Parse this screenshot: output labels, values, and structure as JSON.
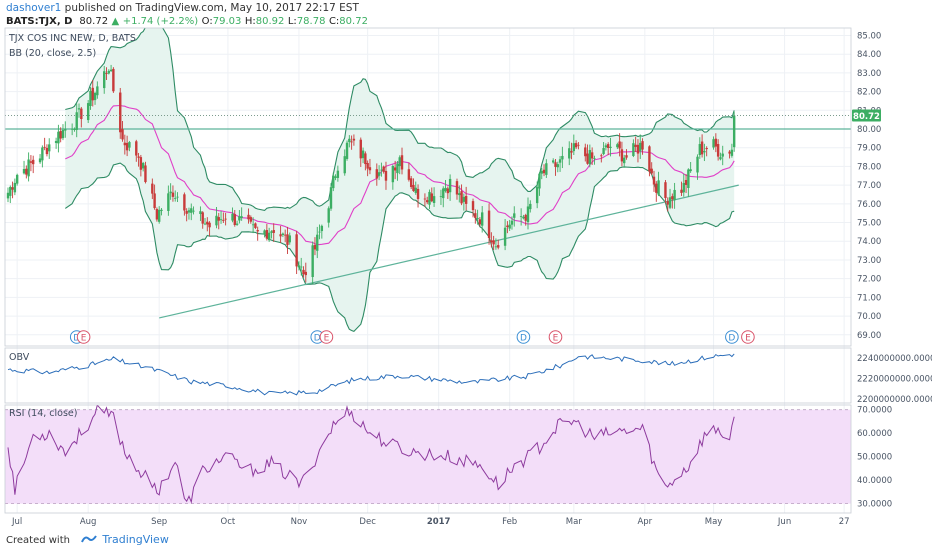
{
  "header": {
    "author": "dashover1",
    "published_text": "published on TradingView.com, May 10, 2017 22:17 EST",
    "symbol": "BATS:TJX",
    "interval": "D",
    "last": "80.72",
    "change": "+1.74 (+2.2%)",
    "open_label": "O:",
    "open": "79.03",
    "high_label": "H:",
    "high": "80.92",
    "low_label": "L:",
    "low": "78.78",
    "close_label": "C:",
    "close": "80.72"
  },
  "footer": {
    "created_with": "Created with",
    "brand": "TradingView"
  },
  "colors": {
    "up": "#3cae63",
    "down": "#c83a3a",
    "bb_band": "#2e8b64",
    "bb_fill": "#e6f4ef",
    "bb_basis": "#e040c8",
    "trendline": "#5db39a",
    "obv": "#2d6fba",
    "rsi": "#8e3b9e",
    "rsi_band": "#f3def9",
    "grid": "#eef1f5"
  },
  "chart_data": [
    {
      "type": "candlestick",
      "title": "TJX COS INC NEW, D, BATS",
      "indicator_label": "BB (20, close, 2.5)",
      "last_price_label": "80.72",
      "y_tick_labels": [
        "69.00",
        "70.00",
        "71.00",
        "72.00",
        "73.00",
        "74.00",
        "75.00",
        "76.00",
        "77.00",
        "78.00",
        "79.00",
        "80.00",
        "81.00",
        "82.00",
        "83.00",
        "84.00",
        "85.00"
      ],
      "x_tick_labels": [
        "Jul",
        "Aug",
        "Sep",
        "Oct",
        "Nov",
        "Dec",
        "2017",
        "Feb",
        "Mar",
        "Apr",
        "May",
        "Jun",
        "27"
      ],
      "ylim": [
        68.4,
        85.4
      ],
      "x_date_range": [
        "2016-06-27",
        "2017-06-30"
      ],
      "close_anchors": [
        [
          "2016-06-27",
          76.6
        ],
        [
          "2016-07-01",
          77.6
        ],
        [
          "2016-07-08",
          78.2
        ],
        [
          "2016-07-18",
          79.6
        ],
        [
          "2016-07-27",
          80.5
        ],
        [
          "2016-08-04",
          82.0
        ],
        [
          "2016-08-10",
          83.4
        ],
        [
          "2016-08-16",
          79.4
        ],
        [
          "2016-08-23",
          78.6
        ],
        [
          "2016-08-31",
          75.4
        ],
        [
          "2016-09-07",
          76.7
        ],
        [
          "2016-09-15",
          75.6
        ],
        [
          "2016-09-23",
          74.8
        ],
        [
          "2016-09-30",
          75.4
        ],
        [
          "2016-10-06",
          75.1
        ],
        [
          "2016-10-14",
          74.4
        ],
        [
          "2016-10-21",
          74.7
        ],
        [
          "2016-10-28",
          73.9
        ],
        [
          "2016-11-03",
          72.3
        ],
        [
          "2016-11-08",
          73.6
        ],
        [
          "2016-11-14",
          76.1
        ],
        [
          "2016-11-18",
          78.2
        ],
        [
          "2016-11-23",
          79.3
        ],
        [
          "2016-12-01",
          78.3
        ],
        [
          "2016-12-08",
          77.4
        ],
        [
          "2016-12-15",
          78.5
        ],
        [
          "2016-12-22",
          76.6
        ],
        [
          "2016-12-30",
          76.5
        ],
        [
          "2017-01-06",
          77.1
        ],
        [
          "2017-01-13",
          75.8
        ],
        [
          "2017-01-20",
          75.2
        ],
        [
          "2017-01-26",
          73.9
        ],
        [
          "2017-02-01",
          75.0
        ],
        [
          "2017-02-09",
          75.5
        ],
        [
          "2017-02-15",
          77.6
        ],
        [
          "2017-02-23",
          78.2
        ],
        [
          "2017-03-02",
          78.9
        ],
        [
          "2017-03-10",
          78.3
        ],
        [
          "2017-03-17",
          79.1
        ],
        [
          "2017-03-24",
          78.5
        ],
        [
          "2017-03-31",
          79.2
        ],
        [
          "2017-04-05",
          77.2
        ],
        [
          "2017-04-10",
          76.3
        ],
        [
          "2017-04-18",
          76.9
        ],
        [
          "2017-04-25",
          78.9
        ],
        [
          "2017-05-01",
          79.1
        ],
        [
          "2017-05-05",
          78.7
        ],
        [
          "2017-05-09",
          78.98
        ],
        [
          "2017-05-10",
          80.72
        ]
      ],
      "horizontal_line": 80.0,
      "trendline": [
        [
          "2016-09-01",
          69.9
        ],
        [
          "2017-05-12",
          77.0
        ]
      ],
      "earnings_markers": [
        {
          "date": "2016-07-27",
          "label": "D",
          "kind": "dividend"
        },
        {
          "date": "2016-07-30",
          "label": "E",
          "kind": "earnings"
        },
        {
          "date": "2016-11-09",
          "label": "D",
          "kind": "dividend"
        },
        {
          "date": "2016-11-13",
          "label": "E",
          "kind": "earnings"
        },
        {
          "date": "2017-02-07",
          "label": "D",
          "kind": "dividend"
        },
        {
          "date": "2017-02-21",
          "label": "E",
          "kind": "earnings"
        },
        {
          "date": "2017-05-09",
          "label": "D",
          "kind": "dividend"
        },
        {
          "date": "2017-05-16",
          "label": "E",
          "kind": "earnings"
        }
      ]
    },
    {
      "type": "line",
      "title": "OBV",
      "y_tick_labels": [
        "2200000000.0000",
        "2220000000.0000",
        "2240000000.0000"
      ],
      "ylim": [
        2196000000,
        2250000000
      ],
      "anchors": [
        [
          "2016-06-27",
          2229000000
        ],
        [
          "2016-07-15",
          2226000000
        ],
        [
          "2016-08-01",
          2233000000
        ],
        [
          "2016-08-12",
          2239000000
        ],
        [
          "2016-08-31",
          2228000000
        ],
        [
          "2016-09-15",
          2217000000
        ],
        [
          "2016-10-01",
          2213000000
        ],
        [
          "2016-10-20",
          2205000000
        ],
        [
          "2016-11-08",
          2207000000
        ],
        [
          "2016-11-25",
          2219000000
        ],
        [
          "2016-12-15",
          2223000000
        ],
        [
          "2017-01-15",
          2216000000
        ],
        [
          "2017-02-08",
          2222000000
        ],
        [
          "2017-02-25",
          2234000000
        ],
        [
          "2017-03-03",
          2242000000
        ],
        [
          "2017-03-31",
          2238000000
        ],
        [
          "2017-04-12",
          2234000000
        ],
        [
          "2017-05-01",
          2242000000
        ],
        [
          "2017-05-10",
          2244000000
        ]
      ]
    },
    {
      "type": "line",
      "title": "RSI (14, close)",
      "y_tick_labels": [
        "30.0000",
        "40.0000",
        "50.0000",
        "60.0000",
        "70.0000"
      ],
      "ylim": [
        26,
        72
      ],
      "upper_band": 70,
      "lower_band": 30,
      "anchors": [
        [
          "2016-06-27",
          55
        ],
        [
          "2016-06-30",
          36
        ],
        [
          "2016-07-08",
          59
        ],
        [
          "2016-07-15",
          60
        ],
        [
          "2016-07-22",
          52
        ],
        [
          "2016-08-01",
          64
        ],
        [
          "2016-08-05",
          69
        ],
        [
          "2016-08-12",
          67
        ],
        [
          "2016-08-17",
          52
        ],
        [
          "2016-08-22",
          46
        ],
        [
          "2016-08-31",
          35
        ],
        [
          "2016-09-08",
          48
        ],
        [
          "2016-09-13",
          29
        ],
        [
          "2016-09-20",
          44
        ],
        [
          "2016-09-30",
          50
        ],
        [
          "2016-10-10",
          44
        ],
        [
          "2016-10-20",
          47
        ],
        [
          "2016-11-02",
          38
        ],
        [
          "2016-11-08",
          49
        ],
        [
          "2016-11-15",
          62
        ],
        [
          "2016-11-23",
          70
        ],
        [
          "2016-12-01",
          61
        ],
        [
          "2016-12-09",
          56
        ],
        [
          "2016-12-20",
          52
        ],
        [
          "2017-01-05",
          50
        ],
        [
          "2017-01-20",
          46
        ],
        [
          "2017-01-27",
          38
        ],
        [
          "2017-02-03",
          46
        ],
        [
          "2017-02-12",
          52
        ],
        [
          "2017-02-22",
          63
        ],
        [
          "2017-03-01",
          65
        ],
        [
          "2017-03-10",
          58
        ],
        [
          "2017-03-17",
          60
        ],
        [
          "2017-03-31",
          62
        ],
        [
          "2017-04-06",
          44
        ],
        [
          "2017-04-10",
          37
        ],
        [
          "2017-04-20",
          46
        ],
        [
          "2017-04-27",
          59
        ],
        [
          "2017-05-03",
          62
        ],
        [
          "2017-05-08",
          57
        ],
        [
          "2017-05-10",
          67
        ]
      ]
    }
  ]
}
